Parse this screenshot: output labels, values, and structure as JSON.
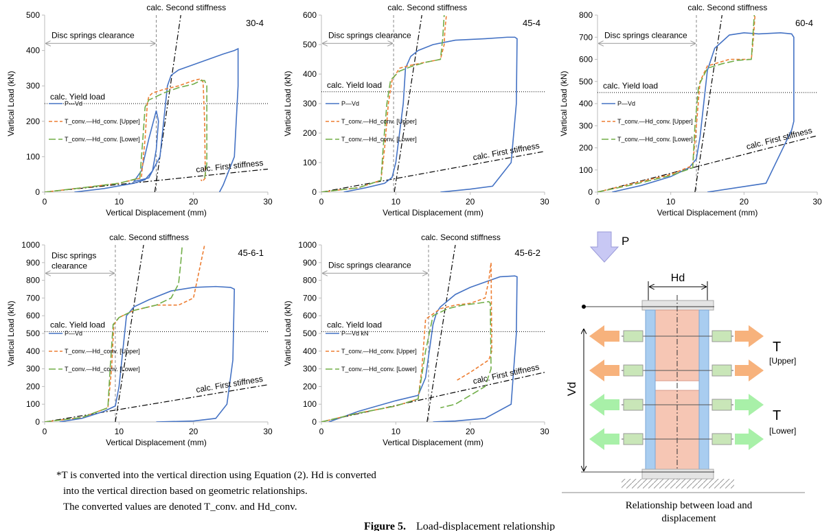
{
  "chart_data": [
    {
      "type": "line",
      "panel": "30-4",
      "x_label": "Vertical Displacement (mm)",
      "y_label": "Vartical Load (kN)",
      "xlim": [
        0,
        30
      ],
      "xticks": [
        0,
        10,
        20,
        30
      ],
      "ylim": [
        0,
        500
      ],
      "yticks": [
        0,
        100,
        200,
        300,
        400,
        500
      ],
      "series": [
        {
          "name": "P—Vd",
          "color": "#4472c4",
          "dash": "solid",
          "x": [
            4,
            8,
            12,
            13.5,
            14.5,
            15,
            15.3,
            15,
            14,
            13,
            12,
            14,
            15.5,
            16,
            16.5,
            17,
            18,
            20,
            22,
            24,
            25.5,
            26,
            26,
            25.5,
            24,
            23.5
          ],
          "values": [
            0,
            10,
            25,
            35,
            60,
            120,
            200,
            230,
            150,
            60,
            30,
            40,
            100,
            200,
            300,
            330,
            345,
            360,
            375,
            390,
            400,
            405,
            300,
            100,
            20,
            0
          ]
        },
        {
          "name": "T_conv.—Hd_conv. [Upper]",
          "color": "#ed7d31",
          "dash": "dashed",
          "x": [
            0,
            5,
            10,
            13,
            13.5,
            13.8,
            14,
            14.5,
            16,
            18,
            20,
            21,
            21.3,
            21.5,
            21.6,
            21.2,
            21
          ],
          "values": [
            0,
            12,
            25,
            40,
            150,
            250,
            270,
            280,
            290,
            300,
            315,
            320,
            310,
            200,
            40,
            30,
            35
          ]
        },
        {
          "name": "T_conv.—Hd_conv. [Lower]",
          "color": "#70ad47",
          "dash": "longdash",
          "x": [
            0,
            5,
            10,
            12.8,
            13.2,
            13.5,
            14,
            16,
            18,
            20,
            21,
            21.5,
            21.8,
            21.8,
            21.5
          ],
          "values": [
            0,
            12,
            25,
            40,
            150,
            240,
            260,
            280,
            295,
            305,
            315,
            315,
            300,
            80,
            40
          ]
        }
      ],
      "clearance": {
        "label": "Disc springs clearance",
        "value": 15
      },
      "yield_load": {
        "label": "calc. Yield load",
        "value": 250
      },
      "second_stiffness": {
        "label": "calc. Second stiffness",
        "x": [
          14.8,
          18.3
        ],
        "y": [
          0,
          500
        ]
      },
      "first_stiffness": {
        "label": "calc. First stiffness",
        "x": [
          0,
          30
        ],
        "y": [
          0,
          65
        ]
      }
    },
    {
      "type": "line",
      "panel": "45-4",
      "x_label": "Vertical Displacement (mm)",
      "y_label": "Vartical Load (kN)",
      "xlim": [
        0,
        30
      ],
      "xticks": [
        0,
        10,
        20,
        30
      ],
      "ylim": [
        0,
        600
      ],
      "yticks": [
        0,
        100,
        200,
        300,
        400,
        500,
        600
      ],
      "series": [
        {
          "name": "P—Vd",
          "color": "#4472c4",
          "dash": "solid",
          "x": [
            3,
            6,
            8.5,
            9.5,
            10,
            10.5,
            11,
            11.3,
            12,
            13,
            15,
            18,
            22,
            25,
            26,
            26.3,
            26.2,
            25.5,
            23,
            20,
            16
          ],
          "values": [
            0,
            15,
            30,
            50,
            100,
            200,
            300,
            420,
            460,
            480,
            500,
            515,
            520,
            525,
            525,
            520,
            300,
            100,
            20,
            10,
            0
          ]
        },
        {
          "name": "T_conv.—Hd_conv. [Upper]",
          "color": "#ed7d31",
          "dash": "dashed",
          "x": [
            0,
            5,
            8,
            8.5,
            9,
            9.5,
            10.5,
            12,
            14,
            16,
            16.5,
            16.6,
            16.8
          ],
          "values": [
            0,
            15,
            40,
            150,
            300,
            380,
            420,
            430,
            440,
            450,
            500,
            550,
            600
          ]
        },
        {
          "name": "T_conv.—Hd_conv. [Lower]",
          "color": "#70ad47",
          "dash": "longdash",
          "x": [
            0,
            5,
            8,
            8.3,
            8.8,
            9.3,
            10.5,
            12,
            14,
            16,
            16.3,
            16.5
          ],
          "values": [
            0,
            15,
            40,
            150,
            300,
            380,
            410,
            425,
            440,
            450,
            520,
            600
          ]
        }
      ],
      "clearance": {
        "label": "Disc springs clearance",
        "value": 9.7
      },
      "yield_load": {
        "label": "calc. Yield load",
        "value": 340
      },
      "second_stiffness": {
        "label": "calc. Second stiffness",
        "x": [
          9.8,
          13.5
        ],
        "y": [
          0,
          600
        ]
      },
      "first_stiffness": {
        "label": "calc. First stiffness",
        "x": [
          0,
          30
        ],
        "y": [
          0,
          138
        ]
      }
    },
    {
      "type": "line",
      "panel": "60-4",
      "x_label": "Vertical Displacement (mm)",
      "y_label": "Vartical Load (kN)",
      "xlim": [
        0,
        30
      ],
      "xticks": [
        0,
        10,
        20,
        30
      ],
      "ylim": [
        0,
        800
      ],
      "yticks": [
        0,
        100,
        200,
        300,
        400,
        500,
        600,
        700,
        800
      ],
      "series": [
        {
          "name": "P—Vd",
          "color": "#4472c4",
          "dash": "solid",
          "x": [
            2,
            6,
            10,
            12.5,
            13.5,
            14,
            14.5,
            15,
            15.5,
            16,
            18,
            20,
            22,
            25,
            26.5,
            26.8,
            26.8,
            26.5,
            23,
            15
          ],
          "values": [
            0,
            30,
            70,
            110,
            150,
            250,
            400,
            550,
            600,
            650,
            710,
            720,
            715,
            720,
            715,
            700,
            320,
            280,
            40,
            0
          ]
        },
        {
          "name": "T_conv.—Hd_conv. [Upper]",
          "color": "#ed7d31",
          "dash": "dashed",
          "x": [
            0,
            5,
            10,
            13,
            13.5,
            14,
            15,
            16,
            18,
            21,
            21.3,
            21.5
          ],
          "values": [
            0,
            40,
            80,
            120,
            300,
            500,
            570,
            580,
            600,
            600,
            700,
            800
          ]
        },
        {
          "name": "T_conv.—Hd_conv. [Lower]",
          "color": "#70ad47",
          "dash": "longdash",
          "x": [
            0,
            5,
            10,
            13,
            13.3,
            13.8,
            15,
            17,
            19,
            21,
            21.4
          ],
          "values": [
            0,
            35,
            75,
            110,
            300,
            480,
            560,
            580,
            595,
            600,
            800
          ]
        }
      ],
      "clearance": {
        "label": "Disc springs clearance",
        "value": 13.5
      },
      "yield_load": {
        "label": "calc. Yield load",
        "value": 450
      },
      "second_stiffness": {
        "label": "calc. Second stiffness",
        "x": [
          13.3,
          17
        ],
        "y": [
          0,
          800
        ]
      },
      "first_stiffness": {
        "label": "calc. First stiffness",
        "x": [
          0,
          30
        ],
        "y": [
          0,
          255
        ]
      }
    },
    {
      "type": "line",
      "panel": "45-6-1",
      "x_label": "Vertical Displacement (mm)",
      "y_label": "Vartical Load (kN)",
      "xlim": [
        0,
        30
      ],
      "xticks": [
        0,
        10,
        20,
        30
      ],
      "ylim": [
        0,
        1000
      ],
      "yticks": [
        0,
        100,
        200,
        300,
        400,
        500,
        600,
        700,
        800,
        900,
        1000
      ],
      "series": [
        {
          "name": "P—Vd",
          "color": "#4472c4",
          "dash": "solid",
          "x": [
            2,
            5,
            8,
            9.5,
            10,
            10.5,
            11,
            12,
            14,
            17,
            20,
            23,
            25,
            25.5,
            25.3,
            24.5,
            23,
            20,
            15
          ],
          "values": [
            0,
            20,
            60,
            90,
            200,
            400,
            600,
            650,
            690,
            740,
            760,
            765,
            760,
            750,
            350,
            100,
            20,
            5,
            0
          ]
        },
        {
          "name": "T_conv.—Hd_conv. [Upper]",
          "color": "#ed7d31",
          "dash": "dashed",
          "x": [
            0,
            5,
            8.5,
            9,
            9.3,
            10,
            12,
            15,
            18,
            20,
            21,
            21.5
          ],
          "values": [
            0,
            25,
            80,
            300,
            550,
            590,
            630,
            660,
            660,
            700,
            900,
            1000
          ]
        },
        {
          "name": "T_conv.—Hd_conv. [Lower]",
          "color": "#70ad47",
          "dash": "longdash",
          "x": [
            0,
            5,
            8.5,
            8.8,
            9.2,
            10,
            12,
            15,
            17,
            18,
            18.3,
            18.5
          ],
          "values": [
            0,
            25,
            80,
            300,
            550,
            590,
            630,
            660,
            700,
            780,
            900,
            1000
          ]
        }
      ],
      "clearance": {
        "label": [
          "Disc springs",
          "clearance"
        ],
        "value": 9.5
      },
      "yield_load": {
        "label": "calc. Yield load",
        "value": 510
      },
      "second_stiffness": {
        "label": "calc. Second stiffness",
        "x": [
          9.5,
          13.3
        ],
        "y": [
          0,
          1000
        ]
      },
      "first_stiffness": {
        "label": "calc. First stiffness",
        "x": [
          0,
          30
        ],
        "y": [
          0,
          210
        ]
      }
    },
    {
      "type": "line",
      "panel": "45-6-2",
      "x_label": "Vertical Displacement (mm)",
      "y_label": "Vartical Load (kN)",
      "xlim": [
        0,
        30
      ],
      "xticks": [
        0,
        10,
        20,
        30
      ],
      "ylim": [
        0,
        1000
      ],
      "yticks": [
        0,
        100,
        200,
        300,
        400,
        500,
        600,
        700,
        800,
        900,
        1000
      ],
      "series": [
        {
          "name": "P—Vd kN",
          "color": "#4472c4",
          "dash": "solid",
          "x": [
            1,
            5,
            10,
            13,
            14,
            14.5,
            15,
            15.5,
            16,
            18,
            20,
            22,
            24,
            26,
            26.3,
            26.2,
            25.5,
            22,
            18,
            15
          ],
          "values": [
            0,
            60,
            120,
            150,
            250,
            400,
            550,
            620,
            650,
            720,
            760,
            790,
            820,
            825,
            820,
            500,
            100,
            20,
            5,
            0
          ]
        },
        {
          "name": "T_conv.—Hd_conv. [Upper]",
          "color": "#ed7d31",
          "dash": "dashed",
          "x": [
            0,
            5,
            10,
            13,
            13.5,
            14,
            16,
            18,
            20,
            22,
            22.5,
            22.8,
            22.9,
            22.5,
            20,
            18
          ],
          "values": [
            0,
            50,
            90,
            130,
            300,
            580,
            640,
            660,
            670,
            700,
            800,
            900,
            400,
            350,
            280,
            230
          ]
        },
        {
          "name": "T_conv.—Hd_conv. [Lower]",
          "color": "#70ad47",
          "dash": "longdash",
          "x": [
            0,
            5,
            10,
            13,
            14,
            15,
            17,
            19,
            21,
            22.5,
            22.7,
            22.8,
            22,
            20,
            18,
            16
          ],
          "values": [
            0,
            50,
            90,
            130,
            400,
            600,
            640,
            660,
            670,
            680,
            670,
            300,
            200,
            150,
            100,
            80
          ]
        }
      ],
      "clearance": {
        "label": "Disc springs clearance",
        "value": 14.4
      },
      "yield_load": {
        "label": "calc. Yield load",
        "value": 510
      },
      "second_stiffness": {
        "label": "calc. Second stiffness",
        "x": [
          14.2,
          18
        ],
        "y": [
          0,
          1000
        ]
      },
      "first_stiffness": {
        "label": "calc. First stiffness",
        "x": [
          0,
          30
        ],
        "y": [
          0,
          280
        ]
      }
    }
  ],
  "diagram": {
    "load": "P",
    "width": "Hd",
    "height": "Vd",
    "upper_label": "T",
    "upper_tag": "[Upper]",
    "lower_label": "T",
    "lower_tag": "[Lower]",
    "caption": [
      "Relationship between load and",
      "displacement"
    ]
  },
  "note": [
    "*T is converted into the vertical direction using Equation (2). Hd is converted",
    "into the vertical direction based on geometric relationships.",
    "The converted values are denoted T_conv. and Hd_conv."
  ],
  "figure_caption": {
    "number": "Figure 5.",
    "text": "Load-displacement relationship"
  }
}
